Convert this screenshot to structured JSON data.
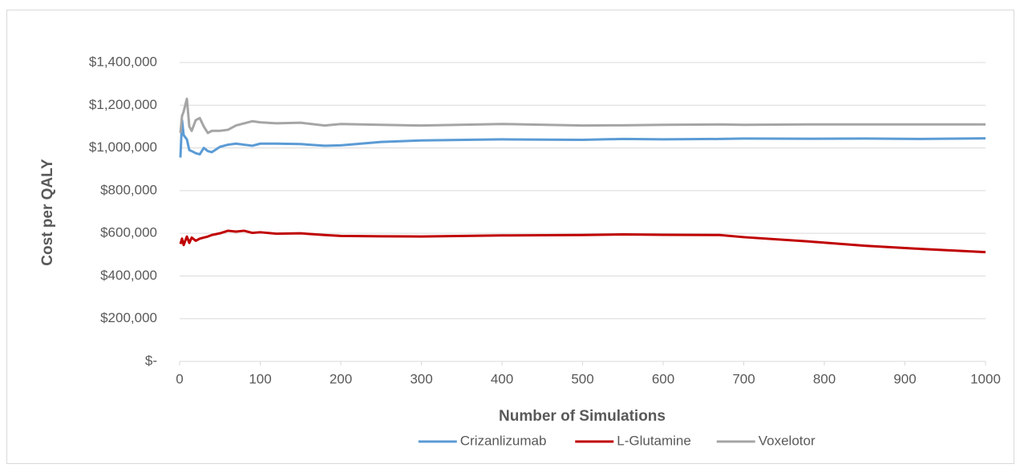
{
  "chart_data": {
    "type": "line",
    "x_label": "Number of Simulations",
    "y_label": "Cost per QALY",
    "x": [
      1,
      3,
      5,
      9,
      12,
      15,
      20,
      25,
      30,
      35,
      40,
      50,
      60,
      70,
      80,
      90,
      100,
      120,
      150,
      180,
      200,
      250,
      300,
      400,
      500,
      550,
      600,
      670,
      700,
      780,
      850,
      920,
      1000
    ],
    "series": [
      {
        "name": "Crizanlizumab",
        "color": "#5b9bd5",
        "values": [
          955000,
          1130000,
          1060000,
          1040000,
          990000,
          985000,
          975000,
          970000,
          1000000,
          985000,
          980000,
          1005000,
          1015000,
          1020000,
          1015000,
          1010000,
          1020000,
          1020000,
          1018000,
          1010000,
          1012000,
          1028000,
          1035000,
          1040000,
          1038000,
          1042000,
          1040000,
          1042000,
          1044000,
          1043000,
          1044000,
          1042000,
          1045000
        ]
      },
      {
        "name": "L-Glutamine",
        "color": "#c00000",
        "values": [
          550000,
          575000,
          545000,
          585000,
          555000,
          580000,
          565000,
          575000,
          580000,
          585000,
          592000,
          600000,
          612000,
          608000,
          612000,
          602000,
          605000,
          598000,
          600000,
          592000,
          588000,
          586000,
          585000,
          590000,
          592000,
          595000,
          593000,
          592000,
          582000,
          562000,
          542000,
          527000,
          512000
        ]
      },
      {
        "name": "Voxelotor",
        "color": "#a5a5a5",
        "values": [
          1070000,
          1150000,
          1170000,
          1230000,
          1100000,
          1080000,
          1130000,
          1140000,
          1100000,
          1070000,
          1080000,
          1080000,
          1085000,
          1105000,
          1115000,
          1125000,
          1120000,
          1115000,
          1118000,
          1105000,
          1112000,
          1108000,
          1105000,
          1112000,
          1105000,
          1106000,
          1108000,
          1110000,
          1108000,
          1110000,
          1110000,
          1110000,
          1110000
        ]
      }
    ],
    "xlim": [
      0,
      1000
    ],
    "xticks": [
      0,
      100,
      200,
      300,
      400,
      500,
      600,
      700,
      800,
      900,
      1000
    ],
    "ylim": [
      0,
      1400000
    ],
    "yticks": [
      {
        "value": 0,
        "label": "$-"
      },
      {
        "value": 200000,
        "label": "$200,000"
      },
      {
        "value": 400000,
        "label": "$400,000"
      },
      {
        "value": 600000,
        "label": "$600,000"
      },
      {
        "value": 800000,
        "label": "$800,000"
      },
      {
        "value": 1000000,
        "label": "$1,000,000"
      },
      {
        "value": 1200000,
        "label": "$1,200,000"
      },
      {
        "value": 1400000,
        "label": "$1,400,000"
      }
    ],
    "grid": true,
    "legend": "bottom"
  }
}
